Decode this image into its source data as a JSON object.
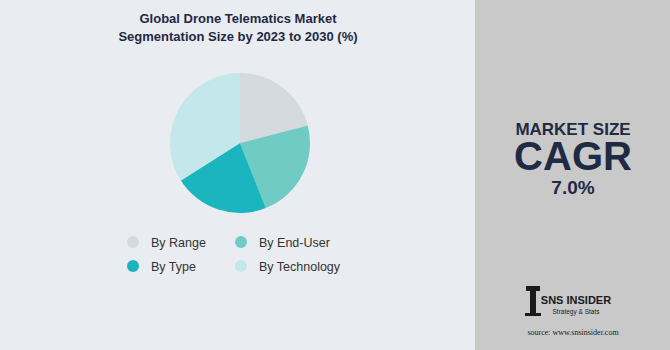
{
  "chart_data": {
    "type": "pie",
    "title": [
      "Global Drone Telematics Market",
      "Segmentation Size by 2023 to 2030 (%)"
    ],
    "categories": [
      "By Range",
      "By End-User",
      "By Type",
      "By Technology"
    ],
    "values": [
      21,
      23,
      22,
      34
    ],
    "colors": [
      "#d5dadf",
      "#6fcbc3",
      "#1ab5be",
      "#c3e7ea"
    ],
    "legend": "bottom",
    "annotations": [
      "MARKET SIZE",
      "CAGR",
      "7.0%",
      "SNS INSIDER",
      "Strategy & Stats",
      "source: www.snsinsider.com"
    ]
  }
}
